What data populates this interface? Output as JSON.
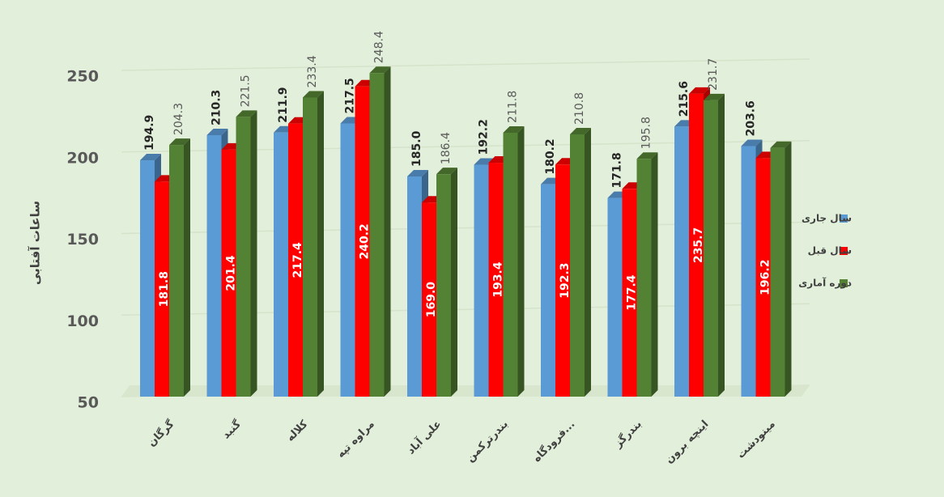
{
  "chart_data": {
    "type": "bar3d",
    "y_label": "ساعات آفتابی",
    "categories": [
      "گرگان",
      "گنبد",
      "کلاله",
      "مراوه تپه",
      "علی آباد",
      "بندرترکمن",
      "فرودگاه...",
      "بندرگز",
      "اینچه برون",
      "مینودشت"
    ],
    "series": [
      {
        "name": "سال جاری",
        "color": "#5b9bd5",
        "values": [
          194.9,
          210.3,
          211.9,
          217.5,
          185.0,
          192.2,
          180.2,
          171.8,
          215.6,
          203.6
        ],
        "value_labels": [
          "194.9",
          "210.3",
          "211.9",
          "217.5",
          "185.0",
          "192.2",
          "180.2",
          "171.8",
          "215.6",
          "203.6"
        ]
      },
      {
        "name": "سال قبل",
        "color": "#ff0000",
        "values": [
          181.8,
          201.4,
          217.4,
          240.2,
          169.0,
          193.4,
          192.3,
          177.4,
          235.7,
          196.2
        ],
        "value_labels": [
          "181.8",
          "201.4",
          "217.4",
          "240.2",
          "169.0",
          "193.4",
          "192.3",
          "177.4",
          "235.7",
          "196.2"
        ]
      },
      {
        "name": "دوره آماری",
        "color": "#548235",
        "values": [
          204.3,
          221.5,
          233.4,
          248.4,
          186.4,
          211.8,
          210.8,
          195.8,
          231.7,
          202.5
        ],
        "value_labels": [
          "204.3",
          "221.5",
          "233.4",
          "248.4",
          "186.4",
          "211.8",
          "210.8",
          "195.8",
          "231.7",
          null
        ]
      }
    ],
    "ylim": [
      50,
      250
    ],
    "yticks": [
      50,
      100,
      150,
      200,
      250
    ],
    "grid": true,
    "legend": "right"
  }
}
